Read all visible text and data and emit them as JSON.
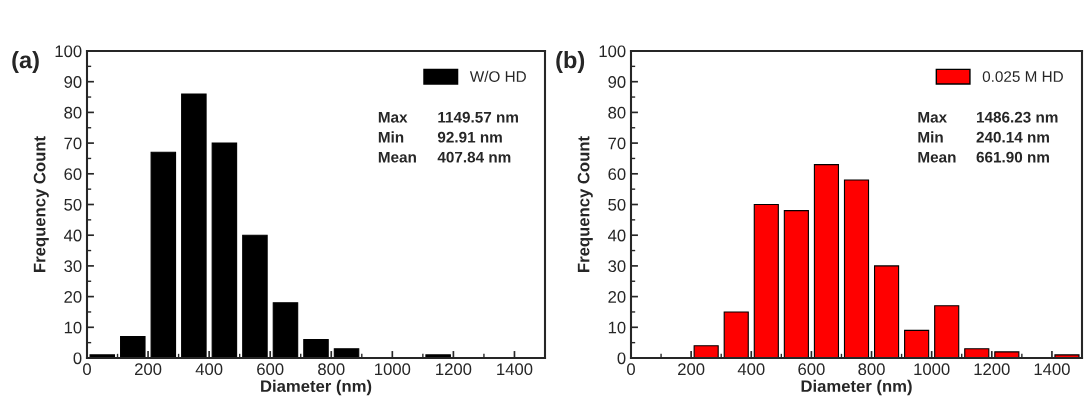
{
  "chart_data": [
    {
      "type": "histogram",
      "title": "(a)",
      "xlabel": "Diameter (nm)",
      "ylabel": "Frequency Count",
      "bins": [
        0,
        100,
        200,
        300,
        400,
        500,
        600,
        700,
        800,
        900,
        1000,
        1100,
        1200,
        1300,
        1400,
        1500
      ],
      "series": [
        {
          "name": "W/O HD",
          "color": "#000000",
          "values": [
            1,
            7,
            67,
            86,
            70,
            40,
            18,
            6,
            3,
            0,
            0,
            1,
            0,
            0,
            0
          ]
        }
      ],
      "xlim": [
        0,
        1500
      ],
      "xticks": [
        0,
        200,
        400,
        600,
        800,
        1000,
        1200,
        1400
      ],
      "ylim": [
        0,
        100
      ],
      "yticks": [
        0,
        10,
        20,
        30,
        40,
        50,
        60,
        70,
        80,
        90,
        100
      ],
      "legend": "top right",
      "grid": false,
      "annotations": [
        "Max",
        "1149.57 nm",
        "Min",
        "92.91 nm",
        "Mean",
        "407.84 nm"
      ]
    },
    {
      "type": "histogram",
      "title": "(b)",
      "xlabel": "Diameter (nm)",
      "ylabel": "Frequency Count",
      "bins": [
        0,
        100,
        200,
        300,
        400,
        500,
        600,
        700,
        800,
        900,
        1000,
        1100,
        1200,
        1300,
        1400,
        1500
      ],
      "series": [
        {
          "name": "0.025 M HD",
          "color": "#ff0000",
          "values": [
            0,
            0,
            4,
            15,
            50,
            48,
            63,
            58,
            30,
            9,
            17,
            3,
            2,
            0,
            1
          ]
        }
      ],
      "xlim": [
        0,
        1500
      ],
      "xticks": [
        0,
        200,
        400,
        600,
        800,
        1000,
        1200,
        1400
      ],
      "ylim": [
        0,
        100
      ],
      "yticks": [
        0,
        10,
        20,
        30,
        40,
        50,
        60,
        70,
        80,
        90,
        100
      ],
      "legend": "top right",
      "grid": false,
      "annotations": [
        "Max",
        "1486.23 nm",
        "Min",
        "240.14 nm",
        "Mean",
        "661.90 nm"
      ]
    }
  ]
}
